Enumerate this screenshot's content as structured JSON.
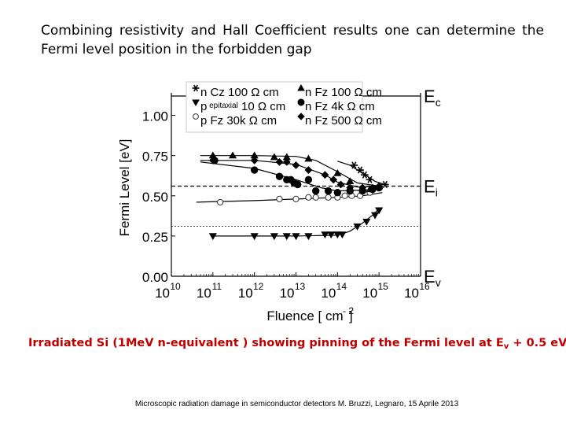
{
  "heading": {
    "line1": "Combining resistivity and Hall Coefficient results one can determine the",
    "line2": "Fermi level position in the forbidden gap"
  },
  "caption": {
    "prefix": "Irradiated Si (1MeV n-equivalent ) showing pinning of the Fermi level at E",
    "subscript": "v",
    "suffix": " + 0.5 eV"
  },
  "footer": "Microscopic radiation damage in semiconductor detectors  M. Bruzzi, Legnaro, 15 Aprile 2013",
  "chart_data": {
    "type": "scatter",
    "xlabel": "Fluence [ cm",
    "xlabel_sup": "- 2",
    "xlabel_close": "]",
    "ylabel": "Fermi Level [eV]",
    "x_scale": "log",
    "xlim": [
      10000000000.0,
      1e+16
    ],
    "ylim": [
      0,
      1.12
    ],
    "x_ticks": [
      {
        "value": 10000000000.0,
        "base": "10",
        "exp": "10"
      },
      {
        "value": 100000000000.0,
        "base": "10",
        "exp": "11"
      },
      {
        "value": 1000000000000.0,
        "base": "10",
        "exp": "12"
      },
      {
        "value": 10000000000000.0,
        "base": "10",
        "exp": "13"
      },
      {
        "value": 100000000000000.0,
        "base": "10",
        "exp": "14"
      },
      {
        "value": 1000000000000000.0,
        "base": "10",
        "exp": "15"
      },
      {
        "value": 1e+16,
        "base": "10",
        "exp": "16"
      }
    ],
    "y_ticks": [
      {
        "value": 0.0,
        "label": "0.00"
      },
      {
        "value": 0.25,
        "label": "0.25"
      },
      {
        "value": 0.5,
        "label": "0.50"
      },
      {
        "value": 0.75,
        "label": "0.75"
      },
      {
        "value": 1.0,
        "label": "1.00"
      }
    ],
    "reference_lines": [
      {
        "y": 1.12,
        "label": "E",
        "sub": "c",
        "style": "solid"
      },
      {
        "y": 0.56,
        "label": "E",
        "sub": "i",
        "style": "dashed"
      },
      {
        "y": 0.31,
        "label": "",
        "sub": "",
        "style": "dotted"
      },
      {
        "y": 0.0,
        "label": "E",
        "sub": "v",
        "style": "solid"
      }
    ],
    "legend": {
      "placement": "top-left",
      "entries": [
        {
          "pre": "n",
          "text": "Cz 100 Ω cm",
          "marker": "star"
        },
        {
          "pre": "p",
          "small": "epitaxial",
          "text": " 10 Ω cm",
          "marker": "triangle-down"
        },
        {
          "pre": "p",
          "text": "Fz 30k Ω cm",
          "marker": "circle-open"
        },
        {
          "pre": "n",
          "text": "Fz 100 Ω cm",
          "marker": "triangle-up"
        },
        {
          "pre": "n",
          "text": "Fz 4k Ω cm",
          "marker": "circle"
        },
        {
          "pre": "n",
          "text": "Fz 500 Ω cm",
          "marker": "diamond"
        }
      ]
    },
    "series": [
      {
        "name": "n Cz 100 Ω cm",
        "marker": "star",
        "points": [
          [
            250000000000000.0,
            0.69
          ],
          [
            350000000000000.0,
            0.66
          ],
          [
            450000000000000.0,
            0.63
          ],
          [
            600000000000000.0,
            0.6
          ],
          [
            1400000000000000.0,
            0.57
          ]
        ],
        "curve": [
          [
            100000000000000.0,
            0.715
          ],
          [
            200000000000000.0,
            0.69
          ],
          [
            400000000000000.0,
            0.64
          ],
          [
            800000000000000.0,
            0.59
          ],
          [
            1400000000000000.0,
            0.57
          ]
        ]
      },
      {
        "name": "p epitaxial 10 Ω cm",
        "marker": "triangle-down",
        "points": [
          [
            100000000000.0,
            0.25
          ],
          [
            1000000000000.0,
            0.25
          ],
          [
            3000000000000.0,
            0.25
          ],
          [
            6000000000000.0,
            0.25
          ],
          [
            10000000000000.0,
            0.25
          ],
          [
            20000000000000.0,
            0.25
          ],
          [
            50000000000000.0,
            0.26
          ],
          [
            70000000000000.0,
            0.26
          ],
          [
            100000000000000.0,
            0.26
          ],
          [
            130000000000000.0,
            0.26
          ],
          [
            300000000000000.0,
            0.31
          ],
          [
            500000000000000.0,
            0.34
          ],
          [
            800000000000000.0,
            0.38
          ],
          [
            1000000000000000.0,
            0.41
          ]
        ],
        "curve": [
          [
            100000000000.0,
            0.25
          ],
          [
            10000000000000.0,
            0.25
          ],
          [
            100000000000000.0,
            0.255
          ],
          [
            200000000000000.0,
            0.28
          ],
          [
            400000000000000.0,
            0.33
          ],
          [
            700000000000000.0,
            0.38
          ],
          [
            1000000000000000.0,
            0.42
          ]
        ]
      },
      {
        "name": "p Fz 30k Ω cm",
        "marker": "circle-open",
        "points": [
          [
            150000000000.0,
            0.46
          ],
          [
            4000000000000.0,
            0.48
          ],
          [
            10000000000000.0,
            0.48
          ],
          [
            20000000000000.0,
            0.49
          ],
          [
            30000000000000.0,
            0.49
          ],
          [
            60000000000000.0,
            0.49
          ],
          [
            100000000000000.0,
            0.49
          ],
          [
            150000000000000.0,
            0.5
          ],
          [
            220000000000000.0,
            0.5
          ],
          [
            350000000000000.0,
            0.5
          ],
          [
            600000000000000.0,
            0.52
          ]
        ],
        "curve": [
          [
            40000000000.0,
            0.46
          ],
          [
            1000000000000.0,
            0.47
          ],
          [
            10000000000000.0,
            0.48
          ],
          [
            100000000000000.0,
            0.49
          ],
          [
            400000000000000.0,
            0.5
          ],
          [
            1200000000000000.0,
            0.52
          ]
        ]
      },
      {
        "name": "n Fz 100 Ω cm",
        "marker": "triangle-up",
        "points": [
          [
            100000000000.0,
            0.75
          ],
          [
            300000000000.0,
            0.75
          ],
          [
            1000000000000.0,
            0.75
          ],
          [
            3000000000000.0,
            0.74
          ],
          [
            6000000000000.0,
            0.74
          ],
          [
            20000000000000.0,
            0.73
          ],
          [
            100000000000000.0,
            0.64
          ],
          [
            200000000000000.0,
            0.59
          ],
          [
            400000000000000.0,
            0.55
          ],
          [
            600000000000000.0,
            0.54
          ],
          [
            1000000000000000.0,
            0.56
          ]
        ],
        "curve": [
          [
            50000000000.0,
            0.75
          ],
          [
            1000000000000.0,
            0.75
          ],
          [
            10000000000000.0,
            0.745
          ],
          [
            30000000000000.0,
            0.72
          ],
          [
            100000000000000.0,
            0.65
          ],
          [
            300000000000000.0,
            0.58
          ],
          [
            1000000000000000.0,
            0.56
          ]
        ]
      },
      {
        "name": "n Fz 4k Ω cm",
        "marker": "circle",
        "points": [
          [
            110000000000.0,
            0.72
          ],
          [
            1000000000000.0,
            0.66
          ],
          [
            4000000000000.0,
            0.62
          ],
          [
            6000000000000.0,
            0.6
          ],
          [
            7500000000000.0,
            0.6
          ],
          [
            9000000000000.0,
            0.58
          ],
          [
            11000000000000.0,
            0.57
          ],
          [
            20000000000000.0,
            0.6
          ],
          [
            30000000000000.0,
            0.53
          ],
          [
            60000000000000.0,
            0.53
          ],
          [
            100000000000000.0,
            0.52
          ],
          [
            200000000000000.0,
            0.53
          ],
          [
            400000000000000.0,
            0.53
          ],
          [
            700000000000000.0,
            0.54
          ],
          [
            1000000000000000.0,
            0.55
          ]
        ],
        "curve": [
          [
            50000000000.0,
            0.71
          ],
          [
            1000000000000.0,
            0.67
          ],
          [
            10000000000000.0,
            0.6
          ],
          [
            40000000000000.0,
            0.55
          ],
          [
            100000000000000.0,
            0.53
          ],
          [
            1000000000000000.0,
            0.54
          ]
        ]
      },
      {
        "name": "n Fz 500 Ω cm",
        "marker": "diamond",
        "points": [
          [
            100000000000.0,
            0.72
          ],
          [
            1000000000000.0,
            0.72
          ],
          [
            4000000000000.0,
            0.71
          ],
          [
            6000000000000.0,
            0.71
          ],
          [
            10000000000000.0,
            0.69
          ],
          [
            20000000000000.0,
            0.66
          ],
          [
            50000000000000.0,
            0.63
          ],
          [
            80000000000000.0,
            0.6
          ],
          [
            120000000000000.0,
            0.57
          ],
          [
            200000000000000.0,
            0.55
          ],
          [
            400000000000000.0,
            0.55
          ],
          [
            700000000000000.0,
            0.55
          ],
          [
            1000000000000000.0,
            0.56
          ]
        ],
        "curve": [
          [
            50000000000.0,
            0.72
          ],
          [
            1000000000000.0,
            0.72
          ],
          [
            10000000000000.0,
            0.695
          ],
          [
            50000000000000.0,
            0.63
          ],
          [
            100000000000000.0,
            0.585
          ],
          [
            300000000000000.0,
            0.555
          ],
          [
            1000000000000000.0,
            0.56
          ]
        ]
      }
    ]
  }
}
